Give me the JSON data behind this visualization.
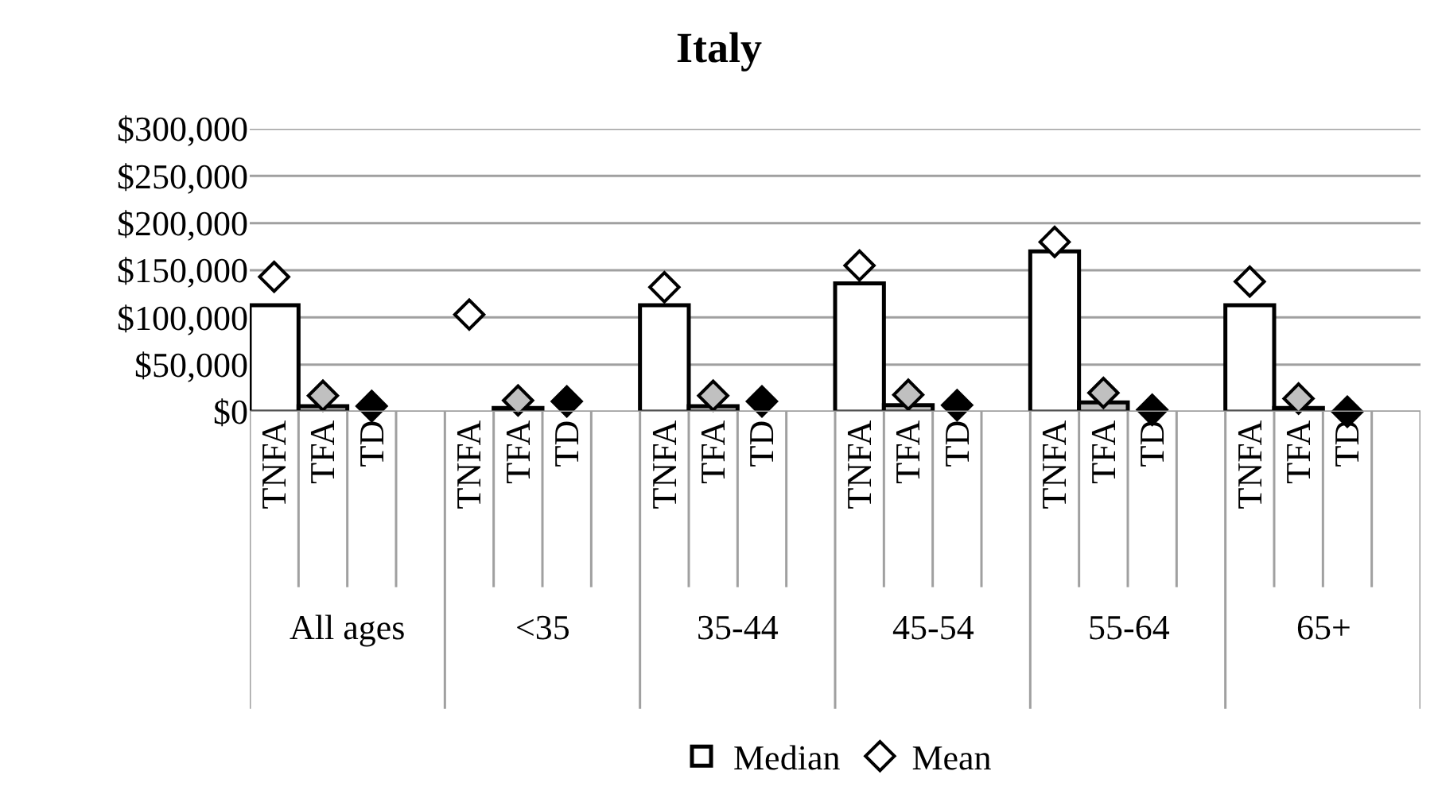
{
  "chart_data": {
    "type": "bar",
    "title": "Italy",
    "categories": [
      "TNFA",
      "TFA",
      "TD",
      null,
      "TNFA",
      "TFA",
      "TD",
      null,
      "TNFA",
      "TFA",
      "TD",
      null,
      "TNFA",
      "TFA",
      "TD",
      null,
      "TNFA",
      "TFA",
      "TD",
      null,
      "TNFA",
      "TFA",
      "TD",
      null
    ],
    "series": [
      {
        "name": "Median",
        "color": "#ffffff",
        "colors": [
          "#ffffff",
          "#c0c0c0",
          "#000000",
          "#ffffff",
          "#ffffff",
          "#c0c0c0",
          "#000000",
          "#ffffff",
          "#ffffff",
          "#c0c0c0",
          "#000000",
          "#ffffff",
          "#ffffff",
          "#c0c0c0",
          "#000000",
          "#ffffff",
          "#ffffff",
          "#c0c0c0",
          "#000000",
          "#ffffff",
          "#ffffff",
          "#c0c0c0",
          "#000000",
          "#ffffff"
        ],
        "values": [
          113000,
          6000,
          null,
          null,
          null,
          4000,
          null,
          null,
          113000,
          6000,
          null,
          null,
          136000,
          7000,
          null,
          null,
          170000,
          10000,
          null,
          null,
          113000,
          4000,
          null,
          null
        ]
      },
      {
        "name": "Mean",
        "type": "scatter",
        "marker": "diamond",
        "color": "#ffffff",
        "colors": [
          "#ffffff",
          "#c0c0c0",
          "#000000",
          "#ffffff",
          "#ffffff",
          "#c0c0c0",
          "#000000",
          "#ffffff",
          "#ffffff",
          "#c0c0c0",
          "#000000",
          "#ffffff",
          "#ffffff",
          "#c0c0c0",
          "#000000",
          "#ffffff",
          "#ffffff",
          "#c0c0c0",
          "#000000",
          "#ffffff",
          "#ffffff",
          "#c0c0c0",
          "#000000",
          "#ffffff"
        ],
        "values": [
          143000,
          17000,
          6000,
          null,
          103000,
          12000,
          11000,
          null,
          132000,
          17000,
          11000,
          null,
          155000,
          18000,
          7000,
          null,
          180000,
          20000,
          2000,
          null,
          138000,
          14000,
          0,
          null
        ]
      }
    ],
    "ylim": [
      0,
      300000
    ],
    "yticks": [
      {
        "value": 0,
        "label": "$0"
      },
      {
        "value": 50000,
        "label": "$50,000"
      },
      {
        "value": 100000,
        "label": "$100,000"
      },
      {
        "value": 150000,
        "label": "$150,000"
      },
      {
        "value": 200000,
        "label": "$200,000"
      },
      {
        "value": 250000,
        "label": "$250,000"
      },
      {
        "value": 300000,
        "label": "$300,000"
      }
    ],
    "annotations": [
      "All ages",
      "<35",
      "35-44",
      "45-54",
      "55-64",
      "65+"
    ],
    "grid": "y",
    "legend": "bottom"
  }
}
